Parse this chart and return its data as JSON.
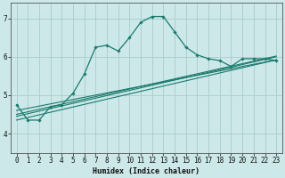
{
  "xlabel": "Humidex (Indice chaleur)",
  "bg_color": "#cce8e8",
  "grid_color": "#aacccc",
  "line_color": "#1a7a6e",
  "xlim": [
    -0.5,
    23.5
  ],
  "ylim": [
    3.5,
    7.4
  ],
  "yticks": [
    4,
    5,
    6,
    7
  ],
  "xticks": [
    0,
    1,
    2,
    3,
    4,
    5,
    6,
    7,
    8,
    9,
    10,
    11,
    12,
    13,
    14,
    15,
    16,
    17,
    18,
    19,
    20,
    21,
    22,
    23
  ],
  "curve1_x": [
    0,
    1,
    2,
    3,
    4,
    5,
    6,
    7,
    8,
    9,
    10,
    11,
    12,
    13,
    14,
    15,
    16,
    17,
    18,
    19,
    20,
    21,
    22,
    23
  ],
  "curve1_y": [
    4.75,
    4.35,
    4.35,
    4.7,
    4.75,
    5.05,
    5.55,
    6.25,
    6.3,
    6.15,
    6.5,
    6.9,
    7.05,
    7.05,
    6.65,
    6.25,
    6.05,
    5.95,
    5.9,
    5.75,
    5.95,
    5.95,
    5.95,
    5.9
  ],
  "line1_x": [
    0,
    23
  ],
  "line1_y": [
    4.35,
    5.92
  ],
  "line2_x": [
    0,
    23
  ],
  "line2_y": [
    4.45,
    6.0
  ],
  "line3_x": [
    0,
    23
  ],
  "line3_y": [
    4.5,
    6.02
  ],
  "line4_x": [
    0,
    23
  ],
  "line4_y": [
    4.6,
    5.92
  ]
}
